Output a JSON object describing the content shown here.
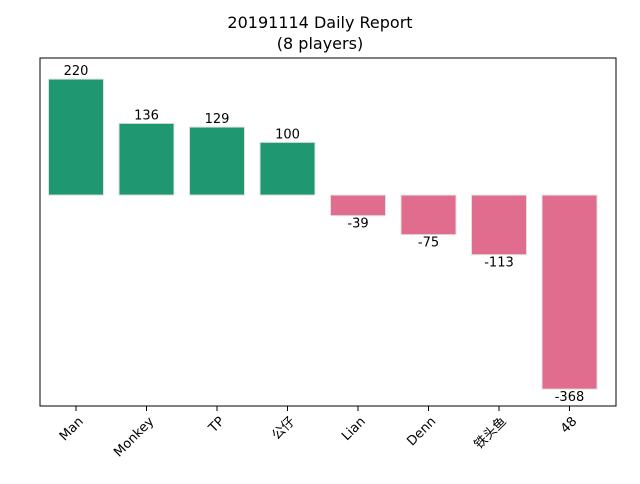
{
  "chart_data": {
    "type": "bar",
    "title": "20191114 Daily Report",
    "subtitle": "(8 players)",
    "xlabel": "",
    "ylabel": "",
    "categories": [
      "Man",
      "Monkey",
      "TP",
      "公仔",
      "Lian",
      "Denn",
      "铁头鱼",
      "48"
    ],
    "values": [
      220,
      136,
      129,
      100,
      -39,
      -75,
      -113,
      -368
    ],
    "ylim": [
      -400,
      260
    ],
    "grid": false,
    "legend": "none",
    "colors": {
      "positive": "#1f9771",
      "negative": "#e06d8e",
      "bar_edge": "#e0e0e0",
      "axes": "#000000",
      "background": "#ffffff"
    }
  }
}
